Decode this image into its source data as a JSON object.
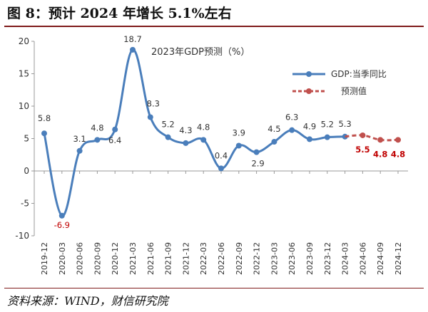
{
  "figure": {
    "title": "图 8：预计 2024 年增长 5.1%左右",
    "source": "资料来源：WIND，财信研究院"
  },
  "chart_data": {
    "type": "line",
    "subtitle": "2023年GDP预测（%）",
    "ylim": [
      -10,
      20
    ],
    "yticks": [
      20,
      15,
      10,
      5,
      0,
      -5,
      -10
    ],
    "categories": [
      "2019-12",
      "2020-03",
      "2020-06",
      "2020-09",
      "2020-12",
      "2021-03",
      "2021-06",
      "2021-09",
      "2021-12",
      "2022-03",
      "2022-06",
      "2022-09",
      "2022-12",
      "2023-03",
      "2023-06",
      "2023-09",
      "2023-12",
      "2024-03",
      "2024-06",
      "2024-09",
      "2024-12"
    ],
    "series": [
      {
        "name": "GDP:当季同比",
        "color": "#4a7ebb",
        "values": [
          5.8,
          -6.9,
          3.1,
          4.8,
          6.4,
          18.7,
          8.3,
          5.2,
          4.3,
          4.8,
          0.4,
          3.9,
          2.9,
          4.5,
          6.3,
          4.9,
          5.2,
          5.3,
          null,
          null,
          null
        ],
        "labels": [
          "5.8",
          "-6.9",
          "3.1",
          "4.8",
          "6.4",
          "18.7",
          "8.3",
          "5.2",
          "4.3",
          "4.8",
          "0.4",
          "3.9",
          "2.9",
          "4.5",
          "6.3",
          "4.9",
          "5.2",
          "5.3",
          null,
          null,
          null
        ]
      },
      {
        "name": "预测值",
        "color": "#c0504d",
        "style": "dashed",
        "values": [
          null,
          null,
          null,
          null,
          null,
          null,
          null,
          null,
          null,
          null,
          null,
          null,
          null,
          null,
          null,
          null,
          null,
          5.3,
          5.5,
          4.8,
          4.8
        ],
        "labels": [
          null,
          null,
          null,
          null,
          null,
          null,
          null,
          null,
          null,
          null,
          null,
          null,
          null,
          null,
          null,
          null,
          null,
          null,
          "5.5",
          "4.8",
          "4.8"
        ]
      }
    ],
    "grid": false,
    "legend_position": "right"
  }
}
